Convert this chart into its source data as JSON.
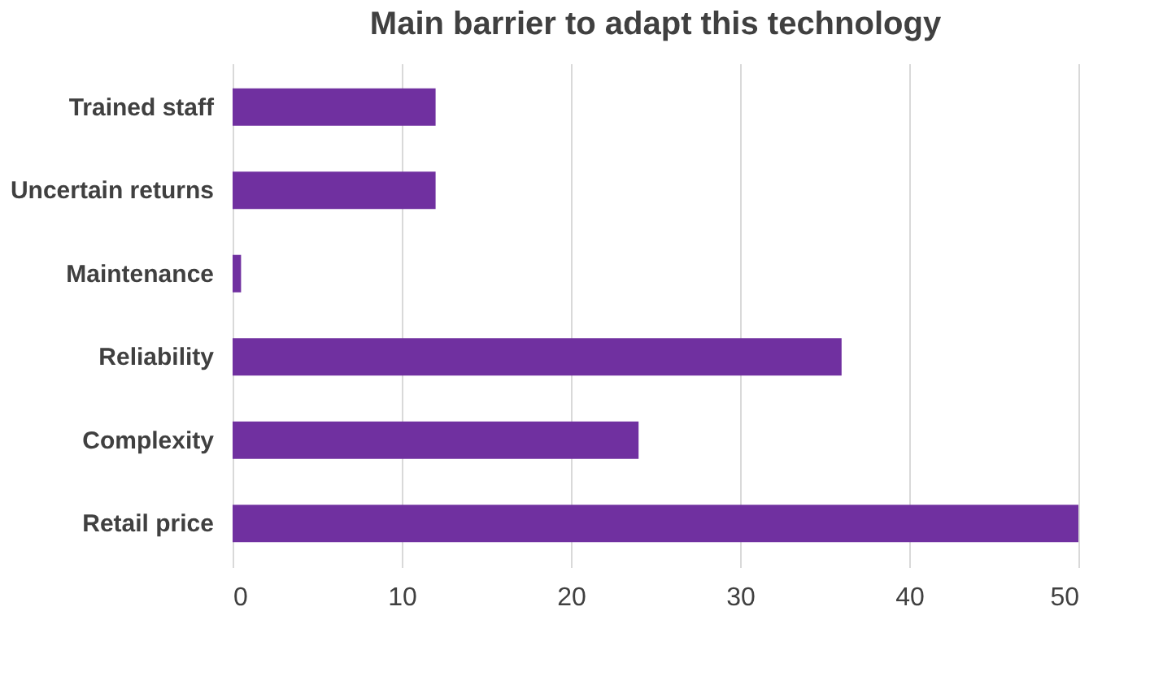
{
  "chart_data": {
    "type": "bar",
    "orientation": "horizontal",
    "title": "Main barrier to adapt this technology",
    "categories": [
      "Trained staff",
      "Uncertain returns",
      "Maintenance",
      "Reliability",
      "Complexity",
      "Retail price"
    ],
    "values": [
      12,
      12,
      0.5,
      36,
      24,
      50
    ],
    "color": "#7030a0",
    "xlim": [
      0,
      50
    ],
    "xticks": [
      0,
      10,
      20,
      30,
      40,
      50
    ],
    "grid": "x"
  }
}
